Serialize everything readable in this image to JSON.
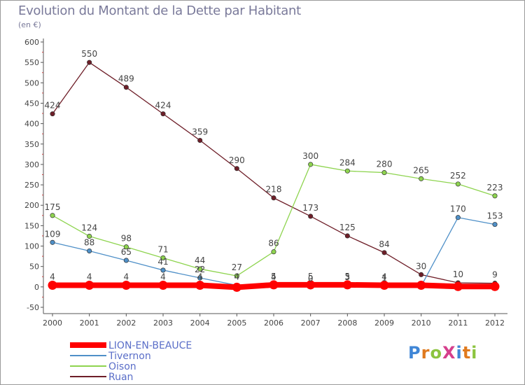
{
  "title": "Evolution du Montant de la Dette par Habitant",
  "unit_label": "(en €)",
  "logo": "ProXiti",
  "chart_data": {
    "type": "line",
    "x": [
      "2000",
      "2001",
      "2002",
      "2003",
      "2004",
      "2005",
      "2006",
      "2007",
      "2008",
      "2009",
      "2010",
      "2011",
      "2012"
    ],
    "ylim": [
      -50,
      600
    ],
    "yticks": [
      -50,
      0,
      50,
      100,
      150,
      200,
      250,
      300,
      350,
      400,
      450,
      500,
      550,
      600
    ],
    "grid": false,
    "legend_position": "bottom-left",
    "series": [
      {
        "name": "LION-EN-BEAUCE",
        "color": "#ff0000",
        "values": [
          4,
          4,
          4,
          4,
          4,
          -1,
          5,
          5,
          5,
          4,
          4,
          1,
          1
        ],
        "labels": [
          "4",
          "4",
          "4",
          "4",
          "4",
          "",
          "5",
          "5",
          "5",
          "4",
          "",
          "",
          ""
        ]
      },
      {
        "name": "Tivernon",
        "color": "#4f90c8",
        "values": [
          109,
          88,
          65,
          41,
          22,
          4,
          4,
          0,
          3,
          1,
          2,
          170,
          153
        ],
        "labels": [
          "109",
          "88",
          "65",
          "41",
          "22",
          "4",
          "4",
          "0",
          "3",
          "1",
          "",
          "170",
          "153"
        ]
      },
      {
        "name": "Oison",
        "color": "#8ed44f",
        "values": [
          175,
          124,
          98,
          71,
          44,
          27,
          86,
          300,
          284,
          280,
          265,
          252,
          223
        ],
        "labels": [
          "175",
          "124",
          "98",
          "71",
          "44",
          "27",
          "86",
          "300",
          "284",
          "280",
          "265",
          "252",
          "223"
        ]
      },
      {
        "name": "Ruan",
        "color": "#6e1e28",
        "values": [
          424,
          550,
          489,
          424,
          359,
          290,
          218,
          173,
          125,
          84,
          30,
          10,
          9
        ],
        "labels": [
          "424",
          "550",
          "489",
          "424",
          "359",
          "290",
          "218",
          "173",
          "125",
          "84",
          "30",
          "10",
          "9"
        ]
      }
    ]
  }
}
